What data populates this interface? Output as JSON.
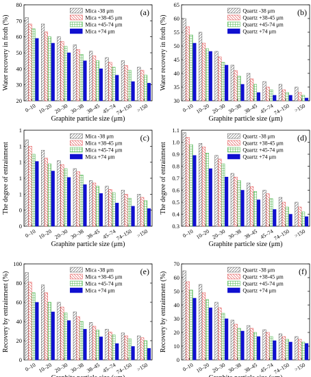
{
  "figure": {
    "categories": [
      "0–10",
      "10–20",
      "20–30",
      "30–38",
      "38–45",
      "45–74",
      "74–150",
      ">150"
    ],
    "xlabel": "Graphite particle size (μm)",
    "colors": {
      "s1": "#555555",
      "s2": "#e04040",
      "s3": "#40b040",
      "s4": "#1010d0"
    }
  },
  "chart_data": [
    {
      "panel": "(a)",
      "type": "bar",
      "categories": [
        "0–10",
        "10–20",
        "20–30",
        "30–38",
        "38–45",
        "45–74",
        "74–150",
        ">150"
      ],
      "xlabel": "Graphite particle size (μm)",
      "ylabel": "Water recovery in froth (%)",
      "ylim": [
        20,
        80
      ],
      "yticks": [
        20,
        30,
        40,
        50,
        60,
        70,
        80
      ],
      "legend_position": "top-right",
      "series": [
        {
          "name": "Mica -38 μm",
          "values": [
            72,
            68,
            60,
            55,
            51,
            47,
            45,
            41
          ]
        },
        {
          "name": "Mica +38-45 μm",
          "values": [
            68,
            63,
            57,
            52,
            48,
            44,
            42,
            39
          ]
        },
        {
          "name": "Mica +45-74 μm",
          "values": [
            65,
            60,
            54,
            49,
            45,
            41,
            39,
            36
          ]
        },
        {
          "name": "Mica +74 μm",
          "values": [
            59,
            56,
            50,
            45,
            40,
            36,
            32,
            31
          ]
        }
      ]
    },
    {
      "panel": "(b)",
      "type": "bar",
      "categories": [
        "0–10",
        "10–20",
        "20–30",
        "30–38",
        "38–45",
        "45–74",
        "74–150",
        ">150"
      ],
      "xlabel": "Graphite particle size (μm)",
      "ylabel": "Water recovery in froth (%)",
      "ylim": [
        30,
        65
      ],
      "yticks": [
        30,
        35,
        40,
        45,
        50,
        55,
        60,
        65
      ],
      "legend_position": "top-right",
      "series": [
        {
          "name": "Quartz -38 μm",
          "values": [
            60,
            55,
            48,
            43,
            40,
            37,
            36,
            35
          ]
        },
        {
          "name": "Quartz +38-45 μm",
          "values": [
            57,
            51,
            46,
            41,
            38,
            35,
            34,
            33
          ]
        },
        {
          "name": "Quartz +45-74 μm",
          "values": [
            54,
            49,
            44,
            39,
            36,
            34,
            33,
            32
          ]
        },
        {
          "name": "Quartz +74 μm",
          "values": [
            51,
            48,
            43,
            36,
            33,
            32,
            32,
            31
          ]
        }
      ]
    },
    {
      "panel": "(c)",
      "type": "bar",
      "categories": [
        "0–10",
        "10–20",
        "20–30",
        "30–38",
        "38–45",
        "45–74",
        "74–150",
        ">150"
      ],
      "xlabel": "Graphite particle size (μm)",
      "ylabel": "The degree of entrainment",
      "ylim": [
        0.2,
        1.4
      ],
      "yticks": [
        0.2,
        0.4,
        0.6,
        0.8,
        1.0,
        1.2,
        1.4
      ],
      "legend_position": "top-right",
      "series": [
        {
          "name": "Mica -38 μm",
          "values": [
            1.28,
            1.15,
            1.02,
            0.92,
            0.77,
            0.7,
            0.65,
            0.6
          ]
        },
        {
          "name": "Mica +38-45 μm",
          "values": [
            1.2,
            1.05,
            0.97,
            0.88,
            0.74,
            0.66,
            0.6,
            0.56
          ]
        },
        {
          "name": "Mica +45-74 μm",
          "values": [
            1.1,
            0.98,
            0.92,
            0.84,
            0.7,
            0.62,
            0.55,
            0.52
          ]
        },
        {
          "name": "Mica +74 μm",
          "values": [
            1.01,
            0.89,
            0.81,
            0.72,
            0.61,
            0.49,
            0.45,
            0.42
          ]
        }
      ]
    },
    {
      "panel": "(d)",
      "type": "bar",
      "categories": [
        "0–10",
        "10–20",
        "20–30",
        "30–38",
        "38–45",
        "45–74",
        "74–150",
        ">150"
      ],
      "xlabel": "Graphite particle size (μm)",
      "ylabel": "The degree of entrainment",
      "ylim": [
        0.3,
        1.1
      ],
      "yticks": [
        0.3,
        0.4,
        0.5,
        0.6,
        0.7,
        0.8,
        0.9,
        1.0,
        1.1
      ],
      "legend_position": "top-right",
      "series": [
        {
          "name": "Quartz -38 μm",
          "values": [
            1.08,
            0.99,
            0.89,
            0.74,
            0.66,
            0.6,
            0.54,
            0.5
          ]
        },
        {
          "name": "Quartz +38-45 μm",
          "values": [
            1.04,
            0.96,
            0.86,
            0.71,
            0.63,
            0.57,
            0.5,
            0.46
          ]
        },
        {
          "name": "Quartz +45-74 μm",
          "values": [
            0.98,
            0.91,
            0.82,
            0.68,
            0.59,
            0.53,
            0.46,
            0.42
          ]
        },
        {
          "name": "Quartz +74 μm",
          "values": [
            0.89,
            0.78,
            0.71,
            0.6,
            0.52,
            0.44,
            0.4,
            0.38
          ]
        }
      ]
    },
    {
      "panel": "(e)",
      "type": "bar",
      "categories": [
        "0–10",
        "10–20",
        "20–30",
        "30–38",
        "38–45",
        "45–74",
        "74–150",
        ">150"
      ],
      "xlabel": "Graphite particle size (μm)",
      "ylabel": "Recovery by entrainment (%)",
      "ylim": [
        0,
        100
      ],
      "yticks": [
        0,
        20,
        40,
        60,
        80,
        100
      ],
      "legend_position": "top-right",
      "series": [
        {
          "name": "Mica -38 μm",
          "values": [
            91,
            78,
            60,
            50,
            39,
            32,
            28,
            25
          ]
        },
        {
          "name": "Mica +38-45 μm",
          "values": [
            81,
            70,
            55,
            45,
            35,
            29,
            25,
            23
          ]
        },
        {
          "name": "Mica +45-74 μm",
          "values": [
            70,
            60,
            49,
            40,
            31,
            26,
            22,
            20
          ]
        },
        {
          "name": "Mica +74 μm",
          "values": [
            60,
            50,
            41,
            32,
            24,
            17,
            14,
            12
          ]
        }
      ]
    },
    {
      "panel": "(f)",
      "type": "bar",
      "categories": [
        "0–10",
        "10–20",
        "20–30",
        "30–38",
        "38–45",
        "45–74",
        "74–150",
        ">150"
      ],
      "xlabel": "Graphite particle size (μm)",
      "ylabel": "Recovery by entrainment (%)",
      "ylim": [
        0,
        70
      ],
      "yticks": [
        0,
        10,
        20,
        30,
        40,
        50,
        60,
        70
      ],
      "legend_position": "top-right",
      "series": [
        {
          "name": "Quartz -38 μm",
          "values": [
            65,
            55,
            42,
            29,
            25,
            22,
            19,
            17
          ]
        },
        {
          "name": "Quartz +38-45 μm",
          "values": [
            57,
            49,
            38,
            26,
            23,
            20,
            17,
            15
          ]
        },
        {
          "name": "Quartz +45-74 μm",
          "values": [
            51,
            44,
            34,
            23,
            20,
            17,
            15,
            13
          ]
        },
        {
          "name": "Quartz +74 μm",
          "values": [
            45,
            38,
            30,
            21,
            17,
            14,
            13,
            12
          ]
        }
      ]
    }
  ]
}
